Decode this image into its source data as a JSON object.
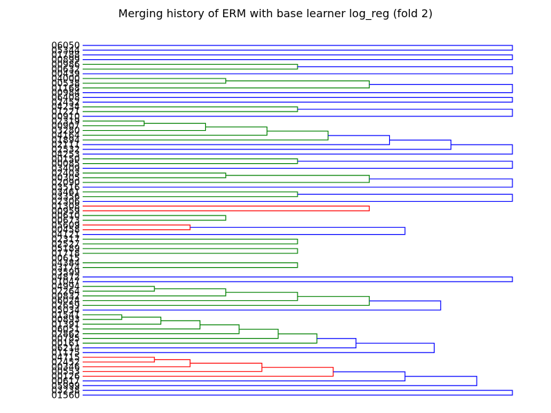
{
  "chart_data": {
    "type": "dendrogram",
    "title": "Merging history of ERM with base learner log_reg (fold 2)",
    "xlabel": "",
    "ylabel": "",
    "axes_visible": false,
    "colors": {
      "blue": "#0000ff",
      "green": "#008000",
      "red": "#ff0000"
    },
    "leaves": [
      "06050",
      "05344",
      "01788",
      "00899",
      "00986",
      "00632",
      "00439",
      "04000",
      "00538",
      "01168",
      "00984",
      "06408",
      "02452",
      "04234",
      "01221",
      "00910",
      "02319",
      "00907",
      "03280",
      "04164",
      "01894",
      "02111",
      "02532",
      "04253",
      "00150",
      "00085",
      "03409",
      "02403",
      "00305",
      "02090",
      "03516",
      "03461",
      "03356",
      "02306",
      "01308",
      "00959",
      "00610",
      "00673",
      "05609",
      "00458",
      "04121",
      "02317",
      "02527",
      "05189",
      "01718",
      "00615",
      "04384",
      "03174",
      "03599",
      "04872",
      "01047",
      "04994",
      "02264",
      "00832",
      "06024",
      "02659",
      "05034",
      "01541",
      "00893",
      "01391",
      "06051",
      "02862",
      "00785",
      "00161",
      "06214",
      "01175",
      "04715",
      "02452",
      "00346",
      "00553",
      "00126",
      "00617",
      "05999",
      "03238",
      "01560"
    ],
    "merges": [
      {
        "a": "06050",
        "b": "05344",
        "height": 1.0,
        "color": "blue"
      },
      {
        "a": "01788",
        "b": "00899",
        "height": 1.0,
        "color": "blue"
      },
      {
        "a": "00986",
        "b": "00632",
        "height": 0.5,
        "color": "green"
      },
      {
        "a": "c2",
        "b": "00439",
        "height": 1.0,
        "color": "blue"
      },
      {
        "a": "04000",
        "b": "00538",
        "height": 0.333,
        "color": "green"
      },
      {
        "a": "c4",
        "b": "01168",
        "height": 0.667,
        "color": "green"
      },
      {
        "a": "c5",
        "b": "00984",
        "height": 1.0,
        "color": "blue"
      },
      {
        "a": "06408",
        "b": "02452",
        "height": 1.0,
        "color": "blue"
      },
      {
        "a": "04234",
        "b": "01221",
        "height": 0.5,
        "color": "green"
      },
      {
        "a": "c8",
        "b": "00910",
        "height": 1.0,
        "color": "blue"
      },
      {
        "a": "02319",
        "b": "00907",
        "height": 0.143,
        "color": "green"
      },
      {
        "a": "c10",
        "b": "03280",
        "height": 0.286,
        "color": "green"
      },
      {
        "a": "c11",
        "b": "04164",
        "height": 0.429,
        "color": "green"
      },
      {
        "a": "c12",
        "b": "01894",
        "height": 0.571,
        "color": "green"
      },
      {
        "a": "c13",
        "b": "02111",
        "height": 0.714,
        "color": "blue"
      },
      {
        "a": "c14",
        "b": "02532",
        "height": 0.857,
        "color": "blue"
      },
      {
        "a": "c15",
        "b": "04253",
        "height": 1.0,
        "color": "blue"
      },
      {
        "a": "00150",
        "b": "00085",
        "height": 0.5,
        "color": "green"
      },
      {
        "a": "c17",
        "b": "03409",
        "height": 1.0,
        "color": "blue"
      },
      {
        "a": "02403",
        "b": "00305",
        "height": 0.333,
        "color": "green"
      },
      {
        "a": "c19",
        "b": "02090",
        "height": 0.667,
        "color": "green"
      },
      {
        "a": "c20",
        "b": "03516",
        "height": 1.0,
        "color": "blue"
      },
      {
        "a": "03461",
        "b": "03356",
        "height": 0.5,
        "color": "green"
      },
      {
        "a": "c22",
        "b": "02306",
        "height": 1.0,
        "color": "blue"
      },
      {
        "a": "01308",
        "b": "00959",
        "height": 0.667,
        "color": "red"
      },
      {
        "a": "00610",
        "b": "00673",
        "height": 0.333,
        "color": "green"
      },
      {
        "a": "05609",
        "b": "00458",
        "height": 0.25,
        "color": "red"
      },
      {
        "a": "c26",
        "b": "04121",
        "height": 0.75,
        "color": "blue"
      },
      {
        "a": "02317",
        "b": "02527",
        "height": 0.5,
        "color": "green"
      },
      {
        "a": "05189",
        "b": "01718",
        "height": 0.5,
        "color": "green"
      },
      {
        "a": "04384",
        "b": "03174",
        "height": 0.5,
        "color": "green"
      },
      {
        "a": "04872",
        "b": "01047",
        "height": 1.0,
        "color": "blue"
      },
      {
        "a": "04994",
        "b": "02264",
        "height": 0.167,
        "color": "green"
      },
      {
        "a": "c32",
        "b": "00832",
        "height": 0.333,
        "color": "green"
      },
      {
        "a": "c33",
        "b": "06024",
        "height": 0.5,
        "color": "green"
      },
      {
        "a": "c34",
        "b": "02659",
        "height": 0.667,
        "color": "green"
      },
      {
        "a": "c35",
        "b": "05034",
        "height": 0.833,
        "color": "blue"
      },
      {
        "a": "01541",
        "b": "00893",
        "height": 0.091,
        "color": "green"
      },
      {
        "a": "c37",
        "b": "01391",
        "height": 0.182,
        "color": "green"
      },
      {
        "a": "c38",
        "b": "06051",
        "height": 0.273,
        "color": "green"
      },
      {
        "a": "c39",
        "b": "02862",
        "height": 0.364,
        "color": "green"
      },
      {
        "a": "c40",
        "b": "00785",
        "height": 0.455,
        "color": "green"
      },
      {
        "a": "c41",
        "b": "00161",
        "height": 0.545,
        "color": "green"
      },
      {
        "a": "c42",
        "b": "06214",
        "height": 0.636,
        "color": "blue"
      },
      {
        "a": "c43",
        "b": "01175",
        "height": 0.818,
        "color": "blue"
      },
      {
        "a": "04715",
        "b": "02452",
        "height": 0.167,
        "color": "red"
      },
      {
        "a": "c45",
        "b": "00346",
        "height": 0.25,
        "color": "red"
      },
      {
        "a": "c46",
        "b": "00553",
        "height": 0.417,
        "color": "red"
      },
      {
        "a": "c47",
        "b": "00126",
        "height": 0.583,
        "color": "red"
      },
      {
        "a": "c48",
        "b": "00617",
        "height": 0.75,
        "color": "blue"
      },
      {
        "a": "c49",
        "b": "05999",
        "height": 0.917,
        "color": "blue"
      },
      {
        "a": "03238",
        "b": "01560",
        "height": 1.0,
        "color": "blue"
      }
    ]
  }
}
